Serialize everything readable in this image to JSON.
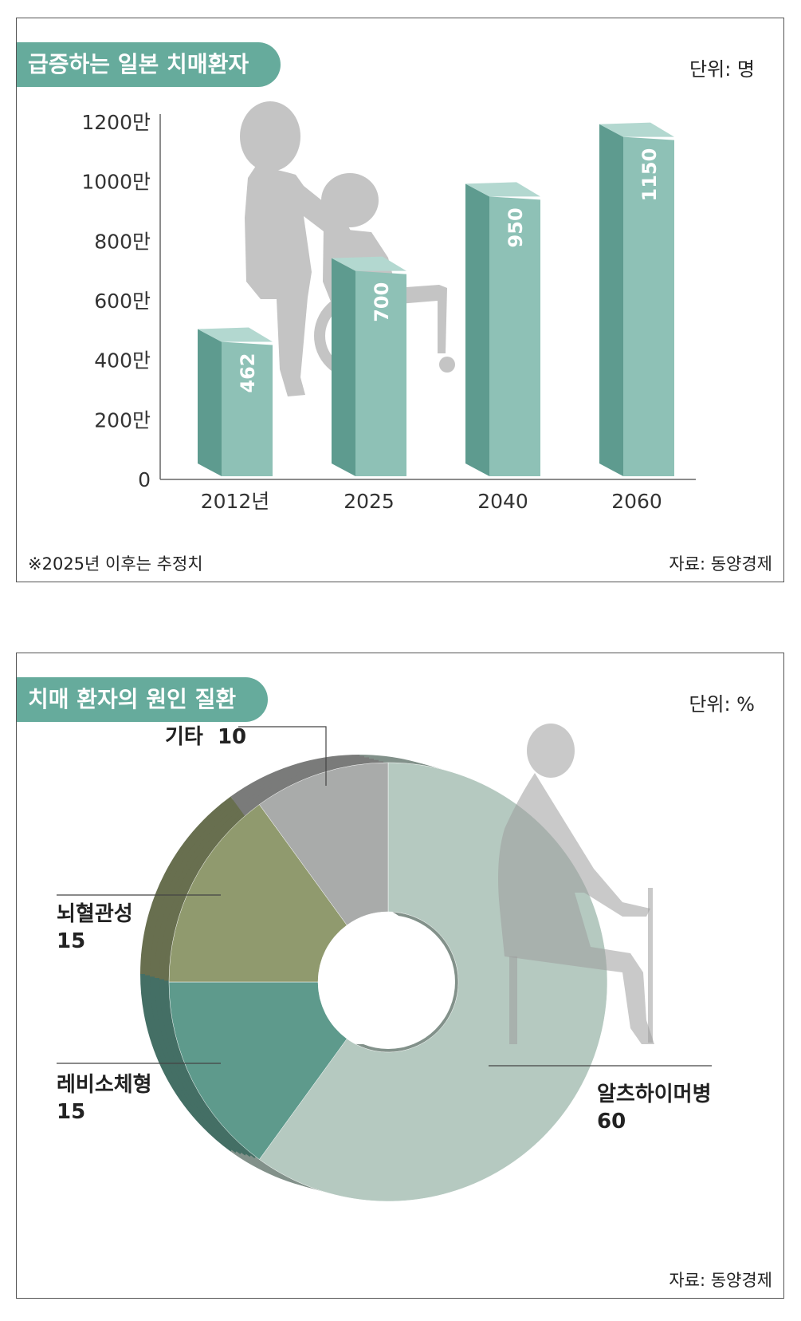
{
  "bar_panel": {
    "title": "급증하는 일본 치매환자",
    "unit": "단위: 명",
    "note": "※2025년 이후는 추정치",
    "source": "자료: 동양경제"
  },
  "pie_panel": {
    "title": "치매 환자의 원인 질환",
    "unit": "단위: %",
    "source": "자료: 동양경제"
  },
  "chart_data": [
    {
      "type": "bar",
      "title": "급증하는 일본 치매환자",
      "unit": "단위: 명",
      "categories": [
        "2012년",
        "2025",
        "2040",
        "2060"
      ],
      "values": [
        462,
        700,
        950,
        1150
      ],
      "value_labels": [
        "462",
        "700",
        "950",
        "1150"
      ],
      "yticks": [
        {
          "value": 0,
          "label": "0"
        },
        {
          "value": 200,
          "label": "200만"
        },
        {
          "value": 400,
          "label": "400만"
        },
        {
          "value": 600,
          "label": "600만"
        },
        {
          "value": 800,
          "label": "800만"
        },
        {
          "value": 1000,
          "label": "1000만"
        },
        {
          "value": 1200,
          "label": "1200만"
        }
      ],
      "ylim": [
        0,
        1200
      ],
      "colors": {
        "front": "#8ec1b6",
        "side": "#5e9b8f",
        "top": "#b3d8d0"
      }
    },
    {
      "type": "pie",
      "title": "치매 환자의 원인 질환",
      "unit": "단위: %",
      "slices": [
        {
          "label": "알츠하이머병",
          "value": 60,
          "color": "#b5c9c0"
        },
        {
          "label": "레비소체형",
          "value": 15,
          "color": "#5e9a8c"
        },
        {
          "label": "뇌혈관성",
          "value": 15,
          "color": "#909a6e"
        },
        {
          "label": "기타",
          "value": 10,
          "color": "#a9abaa"
        }
      ]
    }
  ]
}
